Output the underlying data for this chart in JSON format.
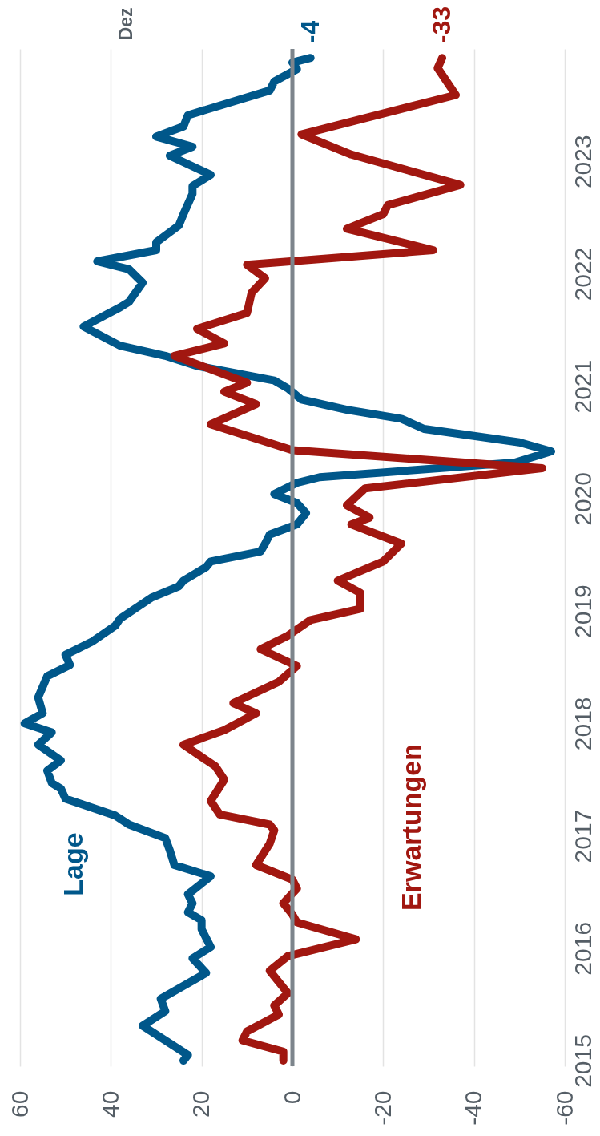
{
  "chart_data": {
    "type": "line",
    "orientation": "horizontal",
    "xlim": [
      60,
      -60
    ],
    "xticks": [
      60,
      40,
      20,
      0,
      -20,
      -40,
      -60
    ],
    "ylim": [
      2014.95,
      2024.0
    ],
    "yticks": [
      2015,
      2016,
      2017,
      2018,
      2019,
      2020,
      2021,
      2022,
      2023
    ],
    "grid": "x",
    "legend": false,
    "line_style": "solid",
    "marker": "none",
    "ref_lines": [
      {
        "axis": "x",
        "value": 0,
        "color": "#7d858c"
      }
    ],
    "annotations": [
      "Dez"
    ],
    "series": [
      {
        "name": "Lage",
        "color": "#00578a",
        "x": [
          2015.0,
          2015.05,
          2015.31,
          2015.44,
          2015.55,
          2015.78,
          2015.91,
          2016.01,
          2016.17,
          2016.25,
          2016.32,
          2016.4,
          2016.48,
          2016.64,
          2016.74,
          2016.87,
          2016.98,
          2017.1,
          2017.18,
          2017.33,
          2017.42,
          2017.47,
          2017.58,
          2017.67,
          2017.81,
          2017.92,
          2018.0,
          2018.09,
          2018.23,
          2018.42,
          2018.52,
          2018.61,
          2018.73,
          2018.87,
          2018.93,
          2019.12,
          2019.22,
          2019.27,
          2019.39,
          2019.44,
          2019.53,
          2019.6,
          2019.68,
          2019.77,
          2019.87,
          2019.96,
          2020.04,
          2020.14,
          2020.19,
          2020.32,
          2020.42,
          2020.5,
          2020.62,
          2020.71,
          2020.79,
          2020.88,
          2020.98,
          2021.05,
          2021.18,
          2021.27,
          2021.36,
          2021.53,
          2021.7,
          2021.75,
          2021.92,
          2022.04,
          2022.11,
          2022.21,
          2022.28,
          2022.43,
          2022.53,
          2022.71,
          2022.78,
          2022.88,
          2023.05,
          2023.13,
          2023.22,
          2023.31,
          2023.41,
          2023.63,
          2023.71,
          2023.82,
          2023.88,
          2023.92
        ],
        "values": [
          24,
          23,
          33,
          28,
          29,
          19,
          22,
          18,
          20,
          20,
          23,
          22,
          23,
          18,
          26,
          27,
          28,
          36,
          39,
          50,
          51,
          53,
          54,
          51,
          56,
          53,
          59,
          55,
          56,
          54,
          49,
          50,
          44,
          39,
          38,
          31,
          25,
          24,
          19,
          18,
          7,
          6,
          5,
          -1,
          -3,
          -1,
          4,
          -1,
          -6,
          -49,
          -57,
          -50,
          -29,
          -24,
          -12,
          -2,
          1,
          4,
          21,
          28,
          38,
          46,
          38,
          36,
          33,
          36,
          43,
          30,
          30,
          25,
          24,
          22,
          22,
          18,
          27,
          22,
          30,
          24,
          23,
          5,
          4,
          -1,
          0,
          -4
        ],
        "value_labels": [
          null,
          null,
          null,
          null,
          null,
          null,
          null,
          null,
          null,
          null,
          null,
          null,
          null,
          null,
          null,
          null,
          null,
          null,
          null,
          null,
          null,
          null,
          null,
          null,
          null,
          null,
          null,
          null,
          null,
          null,
          null,
          null,
          null,
          null,
          null,
          null,
          null,
          null,
          null,
          null,
          null,
          null,
          null,
          null,
          null,
          null,
          null,
          null,
          null,
          null,
          null,
          null,
          null,
          null,
          null,
          null,
          null,
          null,
          null,
          null,
          null,
          null,
          null,
          null,
          null,
          null,
          null,
          null,
          null,
          null,
          null,
          null,
          null,
          null,
          null,
          null,
          null,
          null,
          null,
          null,
          null,
          null,
          null,
          "-4"
        ]
      },
      {
        "name": "Erwartungen",
        "color": "#a11710",
        "x": [
          2015.0,
          2015.08,
          2015.18,
          2015.26,
          2015.41,
          2015.49,
          2015.6,
          2015.8,
          2015.93,
          2016.08,
          2016.23,
          2016.3,
          2016.4,
          2016.53,
          2016.61,
          2016.74,
          2016.93,
          2017.05,
          2017.1,
          2017.19,
          2017.31,
          2017.5,
          2017.62,
          2017.81,
          2017.94,
          2018.09,
          2018.18,
          2018.37,
          2018.51,
          2018.66,
          2018.78,
          2018.92,
          2019.02,
          2019.16,
          2019.27,
          2019.44,
          2019.6,
          2019.77,
          2019.83,
          2019.94,
          2020.09,
          2020.27,
          2020.43,
          2020.66,
          2020.84,
          2020.95,
          2021.03,
          2021.27,
          2021.38,
          2021.51,
          2021.65,
          2021.83,
          2021.96,
          2022.08,
          2022.21,
          2022.4,
          2022.53,
          2022.61,
          2022.79,
          2023.06,
          2023.24,
          2023.59,
          2023.83,
          2023.92
        ],
        "values": [
          2,
          2,
          11,
          10,
          3,
          4,
          1,
          5,
          1,
          -14,
          -1,
          0,
          2,
          -1,
          0,
          8,
          5,
          4,
          5,
          16,
          18,
          15,
          17,
          24,
          15,
          8,
          13,
          3,
          -1,
          7,
          1,
          -4,
          -15,
          -15,
          -10,
          -20,
          -24,
          -13,
          -17,
          -12,
          -16,
          -55,
          0,
          18,
          8,
          15,
          10,
          26,
          15,
          21,
          10,
          9,
          6,
          10,
          -31,
          -12,
          -20,
          -21,
          -37,
          -13,
          -2,
          -36,
          -32,
          -33
        ],
        "value_labels": [
          null,
          null,
          null,
          null,
          null,
          null,
          null,
          null,
          null,
          null,
          null,
          null,
          null,
          null,
          null,
          null,
          null,
          null,
          null,
          null,
          null,
          null,
          null,
          null,
          null,
          null,
          null,
          null,
          null,
          null,
          null,
          null,
          null,
          null,
          null,
          null,
          null,
          null,
          null,
          null,
          null,
          null,
          null,
          null,
          null,
          null,
          null,
          null,
          null,
          null,
          null,
          null,
          null,
          null,
          null,
          null,
          null,
          null,
          null,
          null,
          null,
          null,
          null,
          "-33"
        ]
      }
    ]
  }
}
